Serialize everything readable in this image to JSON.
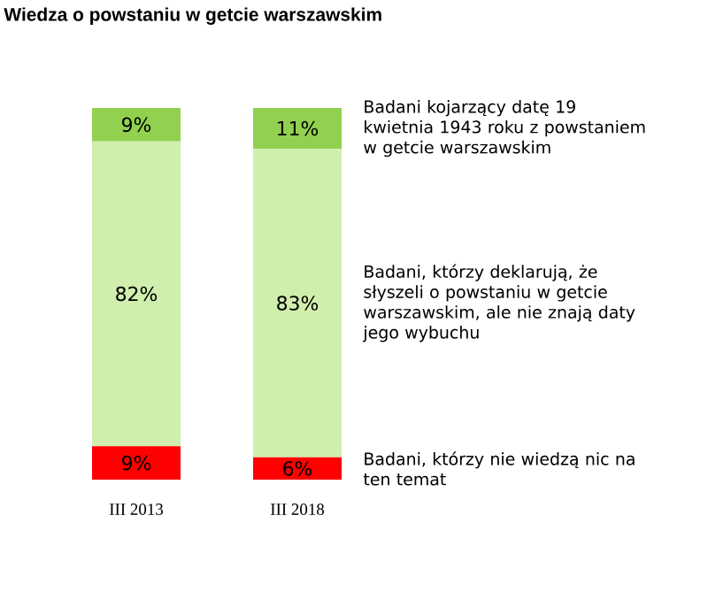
{
  "chart_data": {
    "type": "bar",
    "title": "Wiedza o powstaniu w getcie warszawskim",
    "categories": [
      "III 2013",
      "III 2018"
    ],
    "stacked": true,
    "series": [
      {
        "name": "Badani, którzy nie wiedzą nic na ten temat",
        "color": "#ff0000",
        "values": [
          9,
          6
        ],
        "value_labels": [
          "9%",
          "6%"
        ]
      },
      {
        "name": "Badani, którzy deklarują, że słyszeli o powstaniu w getcie warszawskim, ale nie znają daty jego wybuchu",
        "color": "#d0eeae",
        "values": [
          82,
          83
        ],
        "value_labels": [
          "82%",
          "83%"
        ]
      },
      {
        "name": "Badani kojarzący datę 19 kwietnia 1943 roku z powstaniem w getcie warszawskim",
        "color": "#92d050",
        "values": [
          9,
          11
        ],
        "value_labels": [
          "9%",
          "11%"
        ]
      }
    ]
  }
}
